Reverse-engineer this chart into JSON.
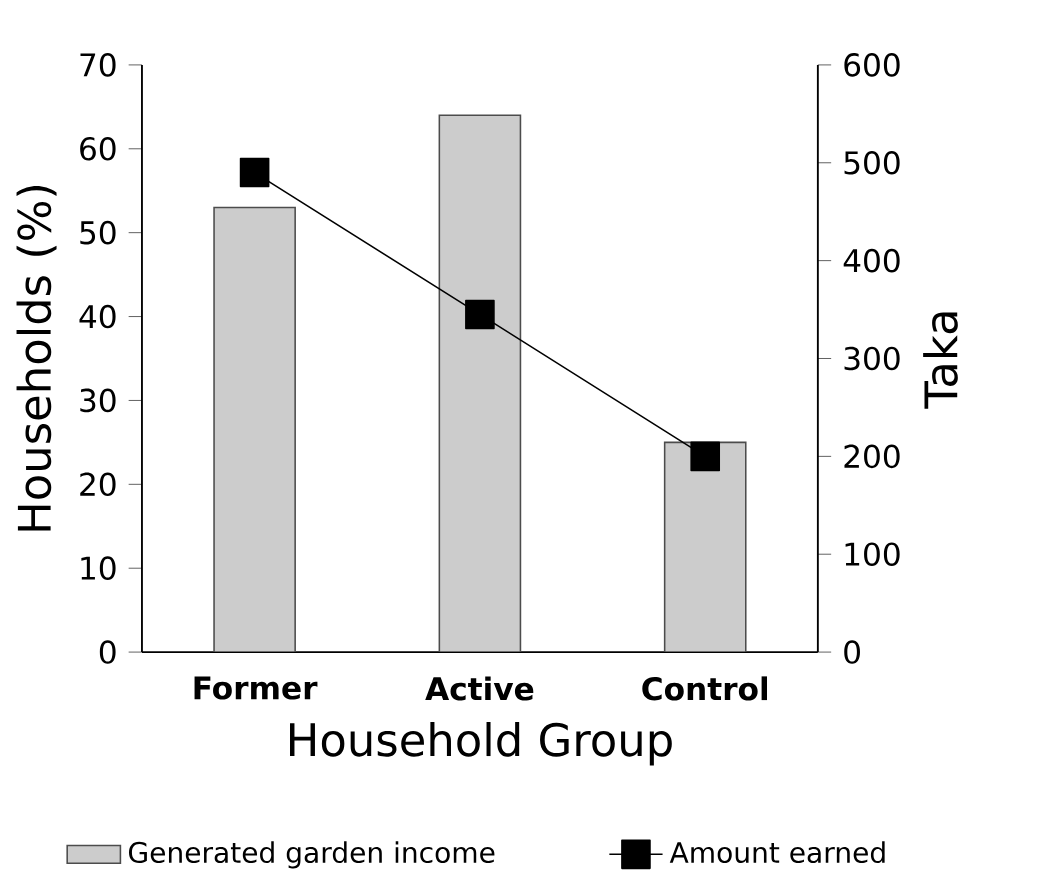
{
  "chart_data": {
    "type": "bar",
    "xlabel": "Household Group",
    "ylabel": "Households (%)",
    "y2label": "Taka",
    "categories": [
      "Former",
      "Active",
      "Control"
    ],
    "series": [
      {
        "name": "Generated garden income",
        "color": "#cccccc",
        "values": [
          53,
          64,
          25
        ]
      },
      {
        "name": "Amount earned",
        "type": "line",
        "axis": "y2",
        "color": "#000000",
        "marker": "square",
        "values": [
          490,
          345,
          200
        ]
      }
    ],
    "ylim": [
      0,
      70
    ],
    "yticks": [
      0,
      10,
      20,
      30,
      40,
      50,
      60,
      70
    ],
    "y2lim": [
      0,
      600
    ],
    "y2ticks": [
      0,
      100,
      200,
      300,
      400,
      500,
      600
    ],
    "grid": false,
    "legend": "bottom"
  }
}
